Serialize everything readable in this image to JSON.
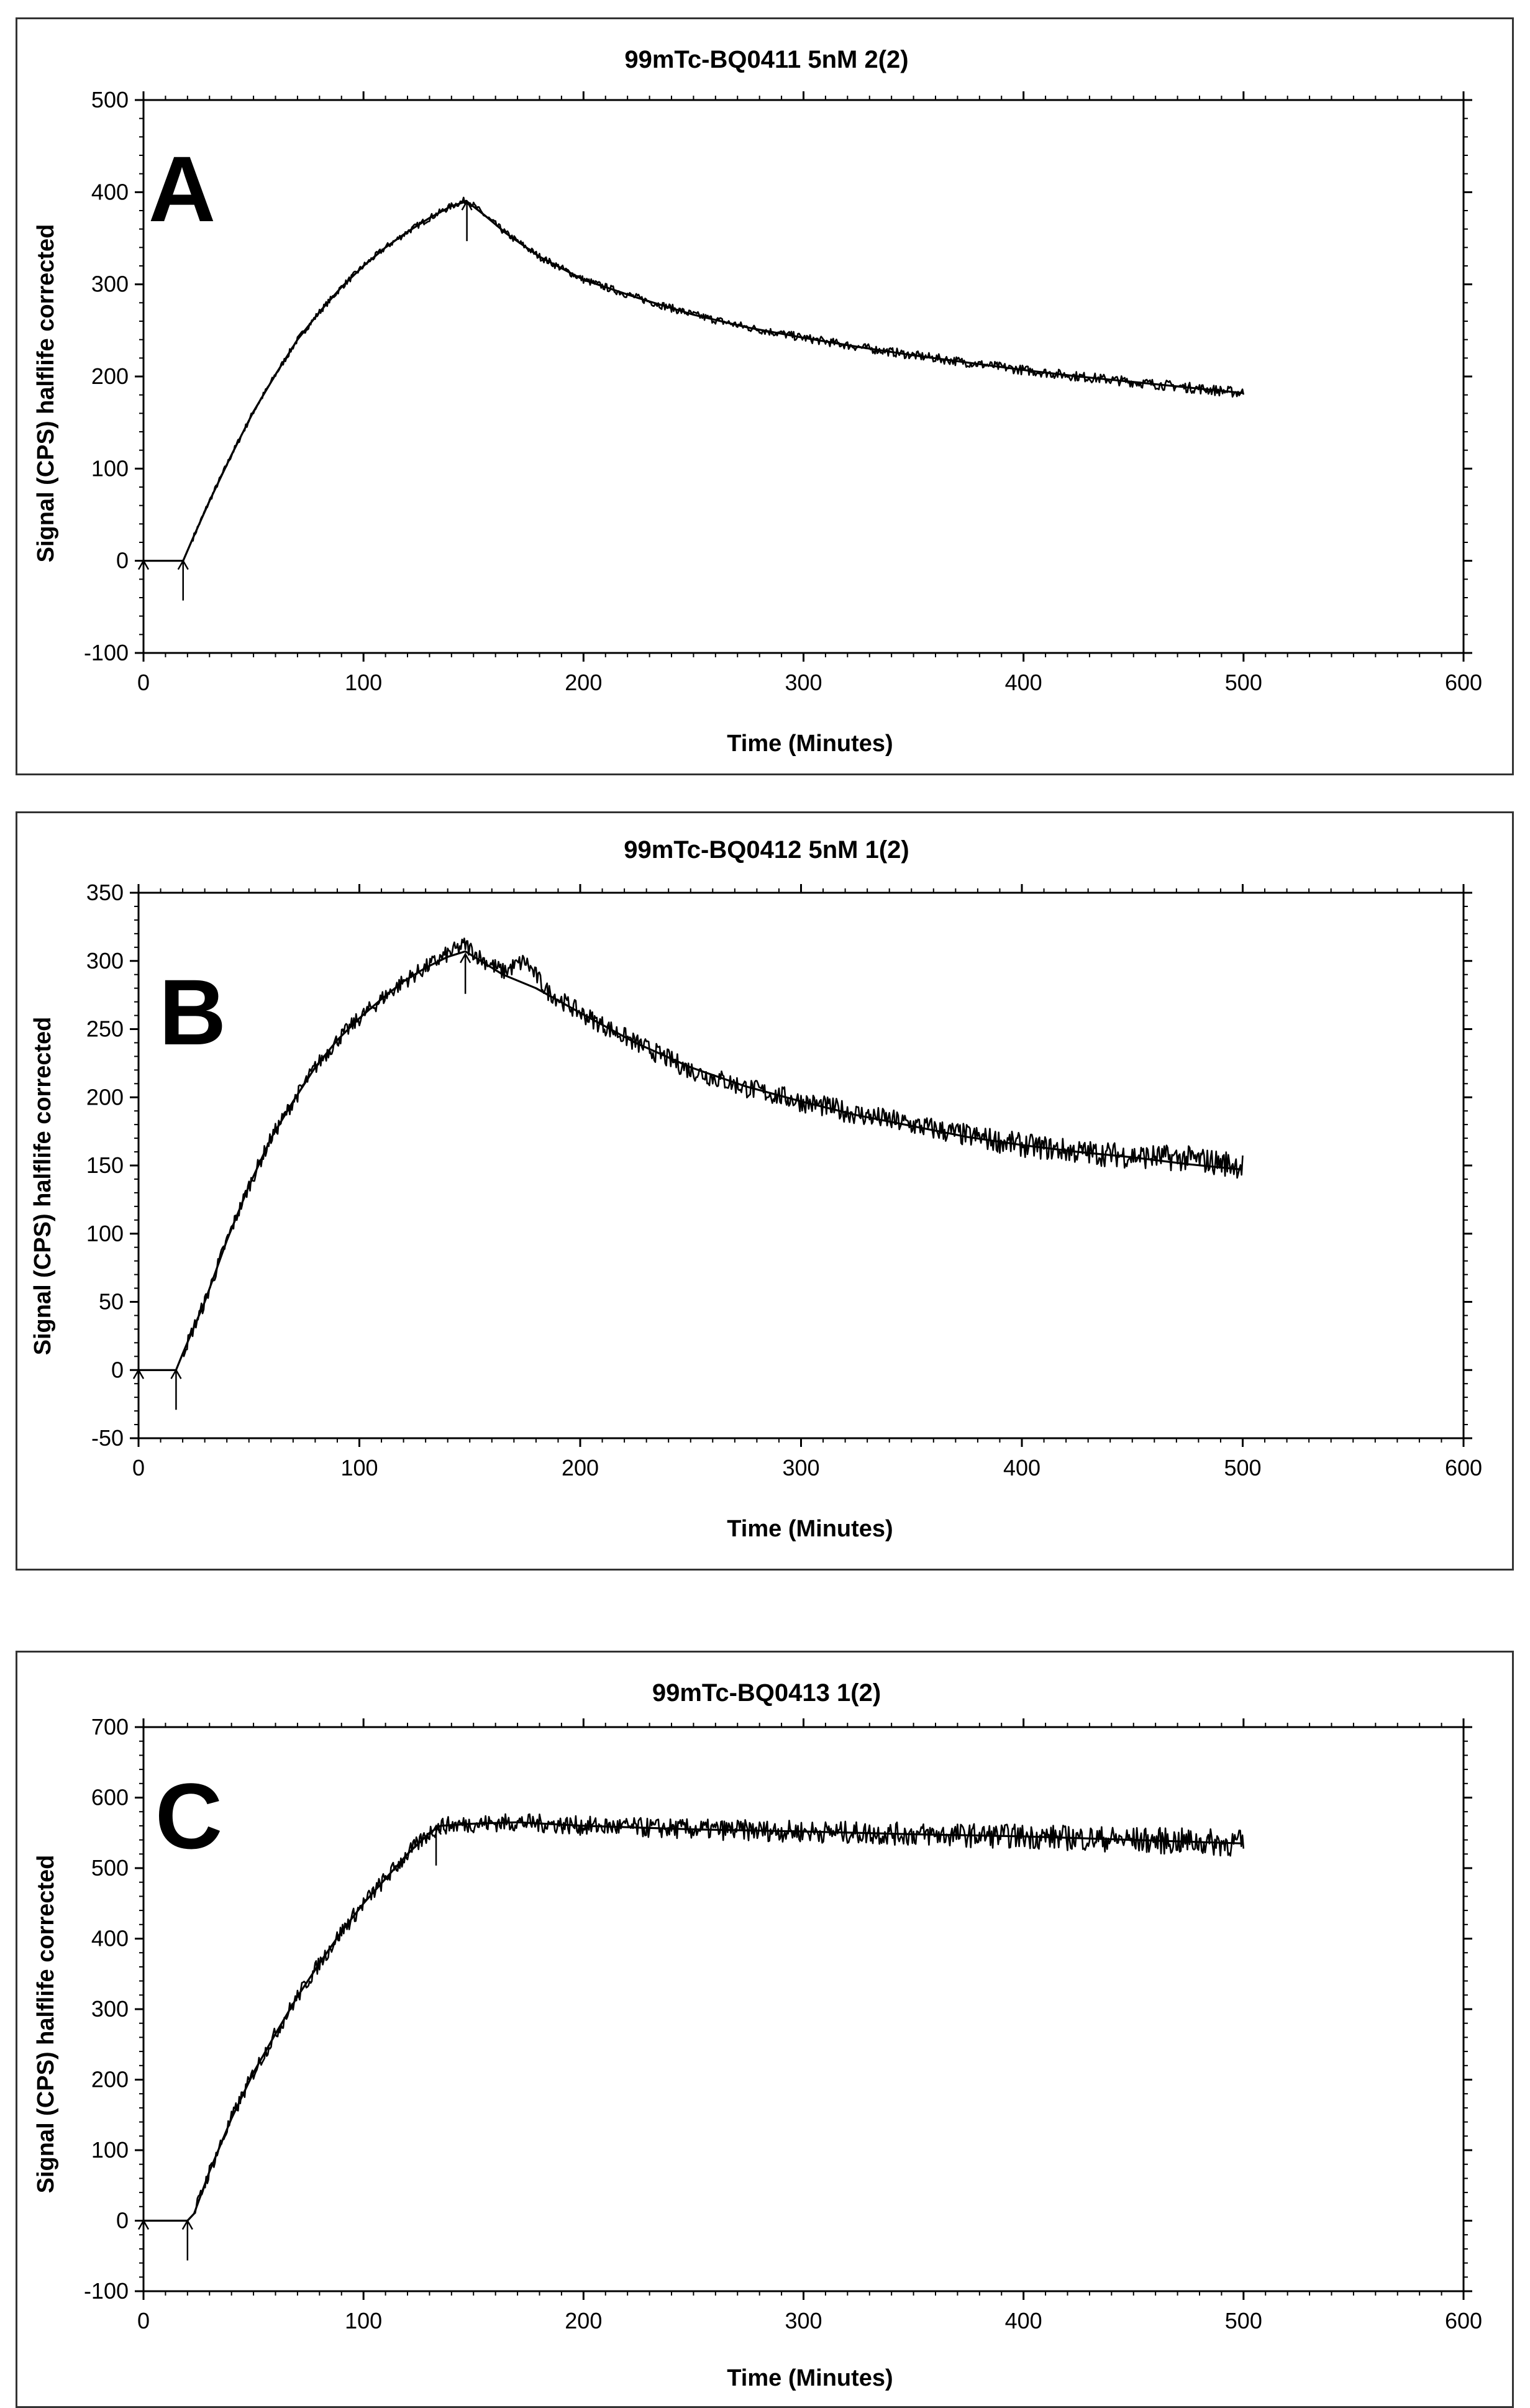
{
  "chart_data": [
    {
      "type": "line",
      "panel_label": "A",
      "title": "99mTc-BQ0411 5nM 2(2)",
      "xlabel": "Time (Minutes)",
      "ylabel": "Signal (CPS) halflife corrected",
      "xlim": [
        0,
        600
      ],
      "ylim": [
        -100,
        500
      ],
      "xticks": [
        0,
        100,
        200,
        300,
        400,
        500,
        600
      ],
      "yticks": [
        -100,
        0,
        100,
        200,
        300,
        400,
        500
      ],
      "line_color": "#000000",
      "series": [
        {
          "name": "measured",
          "noisy": true,
          "noise_amp": 3,
          "x": [
            0,
            18,
            22,
            30,
            40,
            50,
            60,
            70,
            80,
            90,
            100,
            110,
            120,
            130,
            140,
            147,
            155,
            165,
            180,
            200,
            225,
            250,
            275,
            300,
            325,
            350,
            375,
            400,
            425,
            450,
            475,
            500
          ],
          "y": [
            0,
            0,
            22,
            65,
            115,
            162,
            202,
            240,
            270,
            297,
            320,
            340,
            357,
            372,
            385,
            392,
            375,
            355,
            330,
            305,
            285,
            267,
            253,
            242,
            232,
            223,
            215,
            207,
            200,
            194,
            188,
            182
          ]
        },
        {
          "name": "fit",
          "noisy": false,
          "x": [
            0,
            18,
            22,
            30,
            40,
            50,
            60,
            70,
            80,
            90,
            100,
            110,
            120,
            130,
            140,
            147,
            155,
            165,
            180,
            200,
            225,
            250,
            275,
            300,
            325,
            350,
            375,
            400,
            425,
            450,
            475,
            500
          ],
          "y": [
            0,
            0,
            22,
            65,
            115,
            162,
            202,
            240,
            270,
            297,
            320,
            340,
            357,
            372,
            385,
            390,
            375,
            355,
            330,
            305,
            285,
            267,
            253,
            242,
            232,
            223,
            215,
            207,
            200,
            194,
            188,
            182
          ]
        }
      ],
      "markers": [
        {
          "x": 0,
          "y": 0
        },
        {
          "x": 18,
          "y": 0
        },
        {
          "x": 147,
          "y": 390
        }
      ]
    },
    {
      "type": "line",
      "panel_label": "B",
      "title": "99mTc-BQ0412 5nM 1(2)",
      "xlabel": "Time (Minutes)",
      "ylabel": "Signal (CPS) halflife corrected",
      "xlim": [
        0,
        600
      ],
      "ylim": [
        -50,
        350
      ],
      "xticks": [
        0,
        100,
        200,
        300,
        400,
        500,
        600
      ],
      "yticks": [
        -50,
        0,
        50,
        100,
        150,
        200,
        250,
        300,
        350
      ],
      "line_color": "#000000",
      "series": [
        {
          "name": "measured",
          "noisy": true,
          "noise_amp": 5,
          "x": [
            0,
            17,
            20,
            30,
            40,
            50,
            60,
            70,
            80,
            90,
            100,
            110,
            120,
            130,
            140,
            148,
            155,
            165,
            175,
            185,
            200,
            225,
            250,
            275,
            300,
            325,
            350,
            375,
            400,
            425,
            450,
            475,
            500
          ],
          "y": [
            0,
            0,
            12,
            50,
            95,
            135,
            170,
            197,
            222,
            242,
            258,
            272,
            285,
            295,
            305,
            312,
            302,
            292,
            300,
            278,
            262,
            240,
            220,
            207,
            197,
            188,
            180,
            172,
            165,
            160,
            157,
            155,
            150
          ]
        },
        {
          "name": "fit",
          "noisy": false,
          "x": [
            0,
            17,
            20,
            30,
            40,
            50,
            60,
            70,
            80,
            90,
            100,
            110,
            120,
            130,
            140,
            148,
            155,
            165,
            180,
            200,
            225,
            250,
            275,
            300,
            325,
            350,
            375,
            400,
            425,
            450,
            475,
            500
          ],
          "y": [
            0,
            0,
            12,
            50,
            95,
            135,
            170,
            197,
            222,
            242,
            258,
            272,
            285,
            295,
            303,
            307,
            300,
            290,
            280,
            262,
            240,
            222,
            208,
            197,
            187,
            179,
            171,
            165,
            160,
            156,
            151,
            147
          ]
        }
      ],
      "markers": [
        {
          "x": 0,
          "y": 0
        },
        {
          "x": 17,
          "y": 0
        },
        {
          "x": 148,
          "y": 305
        }
      ]
    },
    {
      "type": "line",
      "panel_label": "C",
      "title": "99mTc-BQ0413 1(2)",
      "xlabel": "Time (Minutes)",
      "ylabel": "Signal (CPS) halflife corrected",
      "xlim": [
        0,
        600
      ],
      "ylim": [
        -100,
        700
      ],
      "xticks": [
        0,
        100,
        200,
        300,
        400,
        500,
        600
      ],
      "yticks": [
        -100,
        0,
        100,
        200,
        300,
        400,
        500,
        600,
        700
      ],
      "line_color": "#000000",
      "series": [
        {
          "name": "measured",
          "noisy": true,
          "noise_amp": 10,
          "x": [
            0,
            20,
            23,
            30,
            40,
            50,
            60,
            70,
            80,
            90,
            100,
            110,
            120,
            130,
            135,
            150,
            170,
            200,
            250,
            300,
            350,
            400,
            450,
            500
          ],
          "y": [
            0,
            0,
            10,
            70,
            145,
            210,
            265,
            318,
            365,
            410,
            450,
            485,
            520,
            550,
            560,
            563,
            565,
            560,
            555,
            552,
            548,
            545,
            540,
            535
          ]
        },
        {
          "name": "fit",
          "noisy": false,
          "x": [
            0,
            20,
            23,
            30,
            40,
            50,
            60,
            70,
            80,
            90,
            100,
            110,
            120,
            130,
            135,
            150,
            170,
            200,
            250,
            300,
            350,
            400,
            450,
            500
          ],
          "y": [
            0,
            0,
            10,
            70,
            145,
            210,
            265,
            318,
            365,
            410,
            450,
            485,
            520,
            550,
            560,
            563,
            565,
            560,
            555,
            552,
            548,
            545,
            540,
            535
          ]
        }
      ],
      "markers": [
        {
          "x": 0,
          "y": 0
        },
        {
          "x": 20,
          "y": 0
        },
        {
          "x": 133,
          "y": 560
        }
      ]
    }
  ]
}
